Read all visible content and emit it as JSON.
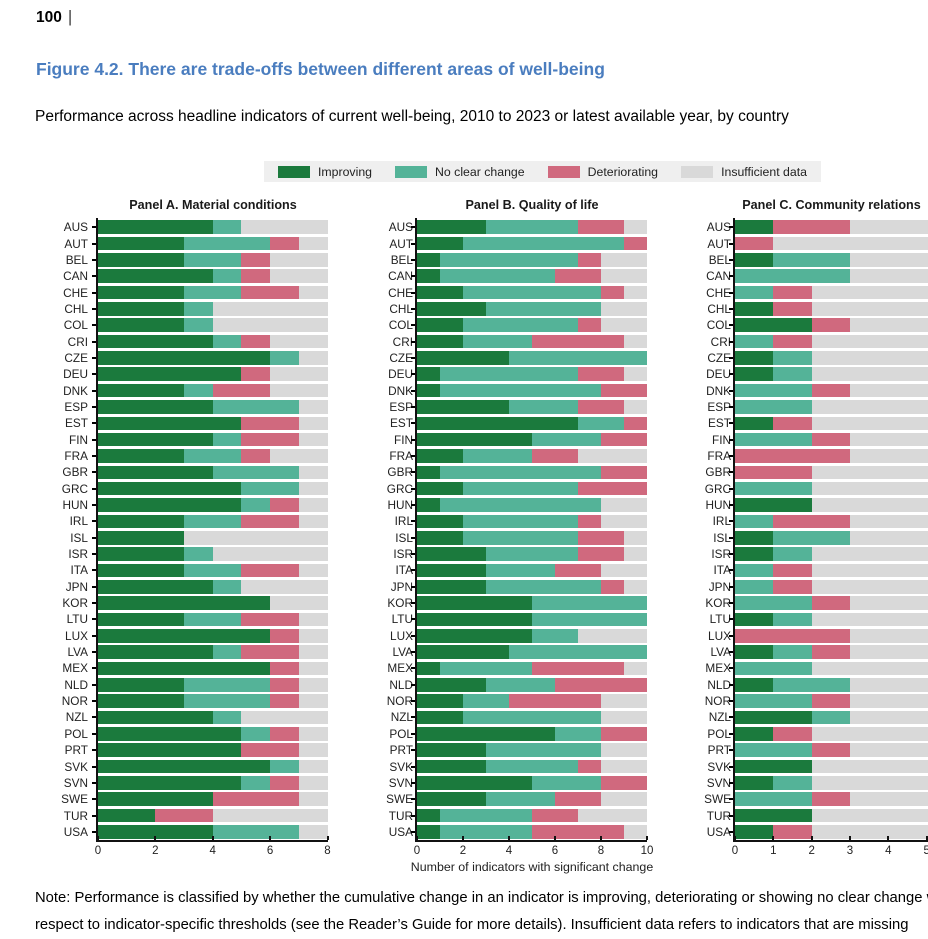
{
  "header": {
    "page_number": "100",
    "separator": "|",
    "figure_title": "Figure 4.2. There are trade-offs between different areas of well-being",
    "subtitle": "Performance across headline indicators of current well-being, 2010 to 2023 or latest available year, by country"
  },
  "legend": {
    "items": [
      {
        "label": "Improving",
        "key": "improving"
      },
      {
        "label": "No clear change",
        "key": "no_clear_change"
      },
      {
        "label": "Deteriorating",
        "key": "deteriorating"
      },
      {
        "label": "Insufficient data",
        "key": "insufficient"
      }
    ],
    "background": "#efefef"
  },
  "colors": {
    "improving": "#1b7a3d",
    "no_clear_change": "#54b398",
    "deteriorating": "#d0697e",
    "insufficient": "#d9d9d9",
    "title_blue": "#4a7dbf",
    "axis": "#111111"
  },
  "chart_data": {
    "type": "bar",
    "orientation": "horizontal-stacked",
    "series_keys": [
      "improving",
      "no_clear_change",
      "deteriorating"
    ],
    "legend_position": "top",
    "categories": [
      "AUS",
      "AUT",
      "BEL",
      "CAN",
      "CHE",
      "CHL",
      "COL",
      "CRI",
      "CZE",
      "DEU",
      "DNK",
      "ESP",
      "EST",
      "FIN",
      "FRA",
      "GBR",
      "GRC",
      "HUN",
      "IRL",
      "ISL",
      "ISR",
      "ITA",
      "JPN",
      "KOR",
      "LTU",
      "LUX",
      "LVA",
      "MEX",
      "NLD",
      "NOR",
      "NZL",
      "POL",
      "PRT",
      "SVK",
      "SVN",
      "SWE",
      "TUR",
      "USA"
    ],
    "panels": [
      {
        "title": "Panel A. Material conditions",
        "xlim": [
          0,
          8
        ],
        "ticks": [
          0,
          2,
          4,
          6,
          8
        ],
        "xlabel": "",
        "values": [
          [
            4,
            1,
            0
          ],
          [
            3,
            3,
            1
          ],
          [
            3,
            2,
            1
          ],
          [
            4,
            1,
            1
          ],
          [
            3,
            2,
            2
          ],
          [
            3,
            1,
            0
          ],
          [
            3,
            1,
            0
          ],
          [
            4,
            1,
            1
          ],
          [
            6,
            1,
            0
          ],
          [
            5,
            0,
            1
          ],
          [
            3,
            1,
            2
          ],
          [
            4,
            3,
            0
          ],
          [
            5,
            0,
            2
          ],
          [
            4,
            1,
            2
          ],
          [
            3,
            2,
            1
          ],
          [
            4,
            3,
            0
          ],
          [
            5,
            2,
            0
          ],
          [
            5,
            1,
            1
          ],
          [
            3,
            2,
            2
          ],
          [
            3,
            0,
            0
          ],
          [
            3,
            1,
            0
          ],
          [
            3,
            2,
            2
          ],
          [
            4,
            1,
            0
          ],
          [
            6,
            0,
            0
          ],
          [
            3,
            2,
            2
          ],
          [
            6,
            0,
            1
          ],
          [
            4,
            1,
            2
          ],
          [
            6,
            0,
            1
          ],
          [
            3,
            3,
            1
          ],
          [
            3,
            3,
            1
          ],
          [
            4,
            1,
            0
          ],
          [
            5,
            1,
            1
          ],
          [
            5,
            0,
            2
          ],
          [
            6,
            1,
            0
          ],
          [
            5,
            1,
            1
          ],
          [
            4,
            0,
            3
          ],
          [
            2,
            0,
            2
          ],
          [
            4,
            3,
            0
          ]
        ]
      },
      {
        "title": "Panel B. Quality of life",
        "xlim": [
          0,
          10
        ],
        "ticks": [
          0,
          2,
          4,
          6,
          8,
          10
        ],
        "xlabel": "Number of indicators with significant change",
        "values": [
          [
            3,
            4,
            2
          ],
          [
            2,
            7,
            1
          ],
          [
            1,
            6,
            1
          ],
          [
            1,
            5,
            2
          ],
          [
            2,
            6,
            1
          ],
          [
            3,
            5,
            0
          ],
          [
            2,
            5,
            1
          ],
          [
            2,
            3,
            4
          ],
          [
            4,
            6,
            0
          ],
          [
            1,
            6,
            2
          ],
          [
            1,
            7,
            2
          ],
          [
            4,
            3,
            2
          ],
          [
            7,
            2,
            1
          ],
          [
            5,
            3,
            2
          ],
          [
            2,
            3,
            2
          ],
          [
            1,
            7,
            2
          ],
          [
            2,
            5,
            3
          ],
          [
            1,
            7,
            0
          ],
          [
            2,
            5,
            1
          ],
          [
            2,
            5,
            2
          ],
          [
            3,
            4,
            2
          ],
          [
            3,
            3,
            2
          ],
          [
            3,
            5,
            1
          ],
          [
            5,
            5,
            0
          ],
          [
            5,
            5,
            0
          ],
          [
            5,
            2,
            0
          ],
          [
            4,
            6,
            0
          ],
          [
            1,
            4,
            4
          ],
          [
            3,
            3,
            4
          ],
          [
            2,
            2,
            4
          ],
          [
            2,
            6,
            0
          ],
          [
            6,
            2,
            2
          ],
          [
            3,
            5,
            0
          ],
          [
            3,
            4,
            1
          ],
          [
            5,
            3,
            2
          ],
          [
            3,
            3,
            2
          ],
          [
            1,
            4,
            2
          ],
          [
            1,
            4,
            4
          ]
        ]
      },
      {
        "title": "Panel C. Community relations",
        "xlim": [
          0,
          6
        ],
        "ticks": [
          0,
          1,
          2,
          3,
          4,
          5
        ],
        "xlabel": "",
        "values": [
          [
            1,
            0,
            2
          ],
          [
            0,
            0,
            1
          ],
          [
            1,
            2,
            0
          ],
          [
            0,
            3,
            0
          ],
          [
            0,
            1,
            1
          ],
          [
            1,
            0,
            1
          ],
          [
            2,
            0,
            1
          ],
          [
            0,
            1,
            1
          ],
          [
            1,
            1,
            0
          ],
          [
            1,
            1,
            0
          ],
          [
            0,
            2,
            1
          ],
          [
            0,
            2,
            0
          ],
          [
            1,
            0,
            1
          ],
          [
            0,
            2,
            1
          ],
          [
            0,
            0,
            3
          ],
          [
            0,
            0,
            2
          ],
          [
            0,
            2,
            0
          ],
          [
            2,
            0,
            0
          ],
          [
            0,
            1,
            2
          ],
          [
            1,
            2,
            0
          ],
          [
            1,
            1,
            0
          ],
          [
            0,
            1,
            1
          ],
          [
            0,
            1,
            1
          ],
          [
            0,
            2,
            1
          ],
          [
            1,
            1,
            0
          ],
          [
            0,
            0,
            3
          ],
          [
            1,
            1,
            1
          ],
          [
            0,
            2,
            0
          ],
          [
            1,
            2,
            0
          ],
          [
            0,
            2,
            1
          ],
          [
            2,
            1,
            0
          ],
          [
            1,
            0,
            1
          ],
          [
            0,
            2,
            1
          ],
          [
            2,
            0,
            0
          ],
          [
            1,
            1,
            0
          ],
          [
            0,
            2,
            1
          ],
          [
            2,
            0,
            0
          ],
          [
            1,
            0,
            1
          ]
        ]
      }
    ]
  },
  "note": {
    "line1": "Note: Performance is classified by whether the cumulative change in an indicator is improving, deteriorating or showing no clear change with",
    "line2": "respect to indicator-specific thresholds (see the Reader’s Guide for more details). Insufficient data refers to indicators that are missing"
  }
}
